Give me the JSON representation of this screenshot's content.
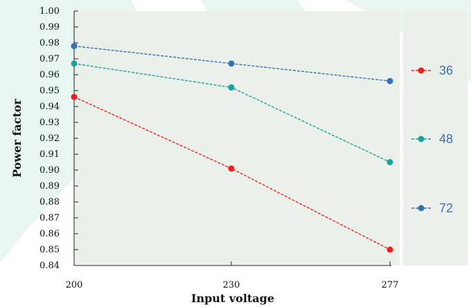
{
  "chart_data": {
    "type": "line",
    "xlabel": "Input voltage",
    "ylabel": "Power factor",
    "categories": [
      "200",
      "230",
      "277"
    ],
    "ylim": [
      0.84,
      1.0
    ],
    "yticks": [
      "1.00",
      "0.99",
      "0.98",
      "0.97",
      "0.96",
      "0.95",
      "0.94",
      "0.93",
      "0.92",
      "0.91",
      "0.90",
      "0.89",
      "0.88",
      "0.87",
      "0.86",
      "0.85",
      "0.84"
    ],
    "grid": false,
    "legend_position": "right",
    "series": [
      {
        "name": "36",
        "color": "#f01f1f",
        "values": [
          0.946,
          0.901,
          0.85
        ]
      },
      {
        "name": "48",
        "color": "#17a39a",
        "values": [
          0.967,
          0.952,
          0.905
        ]
      },
      {
        "name": "72",
        "color": "#3170b8",
        "values": [
          0.978,
          0.967,
          0.956
        ]
      }
    ]
  }
}
